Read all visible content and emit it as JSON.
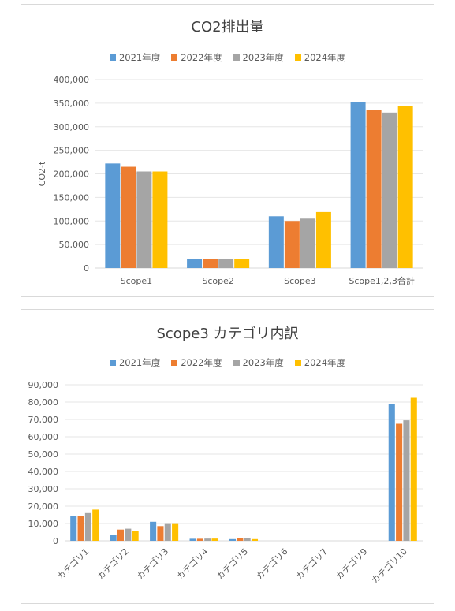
{
  "colors": {
    "s2021": "#5b9bd5",
    "s2022": "#ed7d31",
    "s2023": "#a5a5a5",
    "s2024": "#ffc000"
  },
  "chart_data": [
    {
      "type": "bar",
      "title": "CO2排出量",
      "ylabel": "CO2-t",
      "xlabel": "",
      "ylim": [
        0,
        400000
      ],
      "yticks": [
        "0",
        "50,000",
        "100,000",
        "150,000",
        "200,000",
        "250,000",
        "300,000",
        "350,000",
        "400,000"
      ],
      "grid": true,
      "legend_position": "top",
      "categories": [
        "Scope1",
        "Scope2",
        "Scope3",
        "Scope1,2,3合計"
      ],
      "series": [
        {
          "name": "2021年度",
          "color": "#5b9bd5",
          "values": [
            222000,
            20000,
            110000,
            353000
          ]
        },
        {
          "name": "2022年度",
          "color": "#ed7d31",
          "values": [
            215000,
            19000,
            100000,
            335000
          ]
        },
        {
          "name": "2023年度",
          "color": "#a5a5a5",
          "values": [
            205000,
            19000,
            105000,
            330000
          ]
        },
        {
          "name": "2024年度",
          "color": "#ffc000",
          "values": [
            205000,
            20000,
            119000,
            344000
          ]
        }
      ]
    },
    {
      "type": "bar",
      "title": "Scope3 カテゴリ内訳",
      "ylabel": "",
      "xlabel": "",
      "ylim": [
        0,
        90000
      ],
      "yticks": [
        "0",
        "10,000",
        "20,000",
        "30,000",
        "40,000",
        "50,000",
        "60,000",
        "70,000",
        "80,000",
        "90,000"
      ],
      "grid": true,
      "legend_position": "top",
      "categories": [
        "カテゴリ1",
        "カテゴリ2",
        "カテゴリ3",
        "カテゴリ4",
        "カテゴリ5",
        "カテゴリ6",
        "カテゴリ7",
        "カテゴリ9",
        "カテゴリ10"
      ],
      "series": [
        {
          "name": "2021年度",
          "color": "#5b9bd5",
          "values": [
            14500,
            3500,
            11000,
            1200,
            1000,
            0,
            0,
            0,
            79000
          ]
        },
        {
          "name": "2022年度",
          "color": "#ed7d31",
          "values": [
            14200,
            6500,
            8500,
            1200,
            1500,
            0,
            0,
            0,
            67500
          ]
        },
        {
          "name": "2023年度",
          "color": "#a5a5a5",
          "values": [
            16000,
            7000,
            9700,
            1300,
            1700,
            0,
            0,
            0,
            69500
          ]
        },
        {
          "name": "2024年度",
          "color": "#ffc000",
          "values": [
            18000,
            5500,
            9700,
            1300,
            1000,
            0,
            0,
            0,
            82500
          ]
        }
      ]
    }
  ]
}
